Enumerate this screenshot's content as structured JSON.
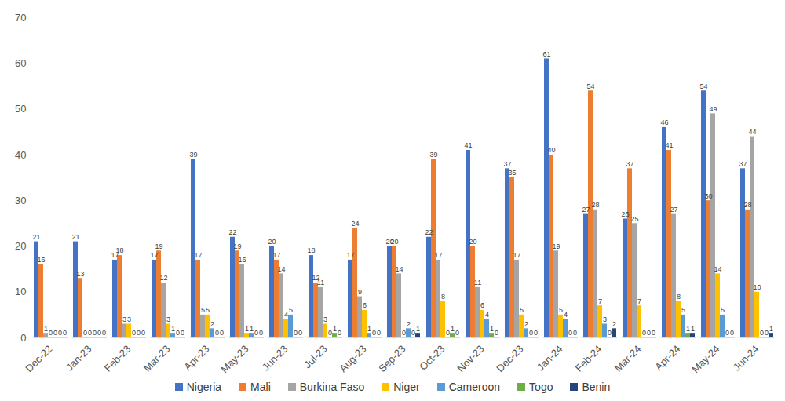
{
  "chart_data": {
    "type": "bar",
    "categories": [
      "Dec-22",
      "Jan-23",
      "Feb-23",
      "Mar-23",
      "Apr-23",
      "May-23",
      "Jun-23",
      "Jul-23",
      "Aug-23",
      "Sep-23",
      "Oct-23",
      "Nov-23",
      "Dec-23",
      "Jan-24",
      "Feb-24",
      "Mar-24",
      "Apr-24",
      "May-24",
      "Jun-24"
    ],
    "series": [
      {
        "name": "Nigeria",
        "color": "#4472c4",
        "values": [
          21,
          21,
          17,
          17,
          39,
          22,
          20,
          18,
          17,
          20,
          22,
          41,
          37,
          61,
          27,
          26,
          46,
          54,
          37
        ]
      },
      {
        "name": "Mali",
        "color": "#ed7d31",
        "values": [
          16,
          13,
          18,
          19,
          17,
          19,
          17,
          12,
          24,
          20,
          39,
          20,
          35,
          40,
          54,
          37,
          41,
          30,
          28
        ]
      },
      {
        "name": "Burkina Faso",
        "color": "#a5a5a5",
        "values": [
          1,
          0,
          3,
          12,
          5,
          16,
          14,
          11,
          9,
          14,
          17,
          11,
          17,
          19,
          28,
          25,
          27,
          49,
          44
        ]
      },
      {
        "name": "Niger",
        "color": "#ffc000",
        "values": [
          0,
          0,
          3,
          3,
          5,
          1,
          4,
          3,
          6,
          0,
          8,
          6,
          5,
          5,
          7,
          7,
          8,
          14,
          10
        ]
      },
      {
        "name": "Cameroon",
        "color": "#5b9bd5",
        "values": [
          0,
          0,
          0,
          1,
          2,
          1,
          5,
          0,
          1,
          2,
          0,
          4,
          2,
          4,
          3,
          0,
          5,
          5,
          0
        ]
      },
      {
        "name": "Togo",
        "color": "#70ad47",
        "values": [
          0,
          0,
          0,
          0,
          0,
          0,
          0,
          1,
          0,
          0,
          1,
          1,
          0,
          0,
          0,
          0,
          1,
          0,
          0
        ]
      },
      {
        "name": "Benin",
        "color": "#264478",
        "values": [
          0,
          0,
          0,
          0,
          0,
          0,
          0,
          0,
          0,
          1,
          0,
          0,
          0,
          0,
          2,
          0,
          1,
          0,
          1
        ]
      }
    ],
    "ylim": [
      0,
      70
    ],
    "yticks": [
      0,
      10,
      20,
      30,
      40,
      50,
      60,
      70
    ],
    "grid": false,
    "legend": "bottom",
    "data_labels": true
  }
}
